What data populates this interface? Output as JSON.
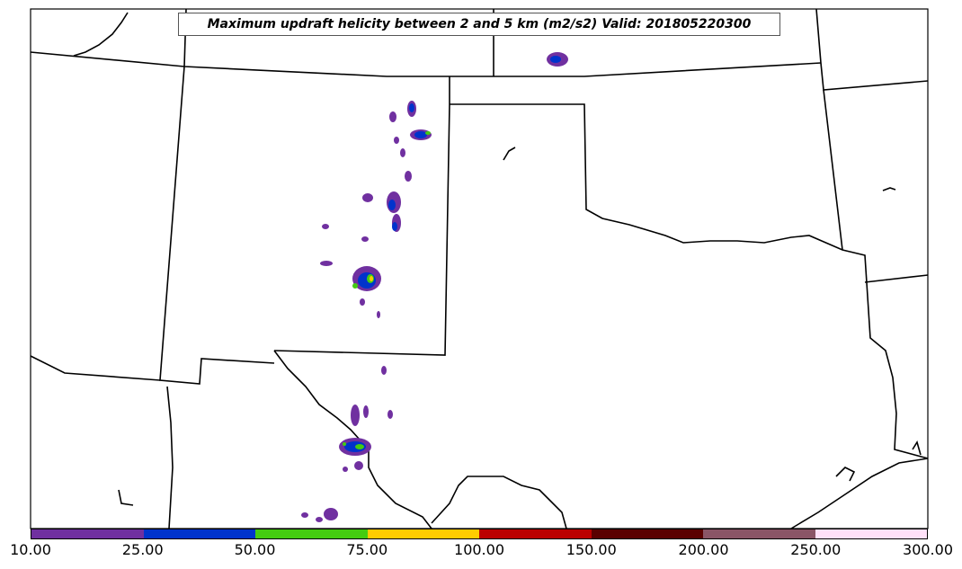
{
  "map": {
    "title": "Maximum updraft helicity between 2 and 5 km (m2/s2) Valid: 201805220300",
    "region": "southern-plains",
    "boundary_color": "#000000"
  },
  "colorbar": {
    "labels": [
      "10.00",
      "25.00",
      "50.00",
      "75.00",
      "100.00",
      "150.00",
      "200.00",
      "250.00",
      "300.00"
    ],
    "colors": [
      "#7030a0",
      "#0033cc",
      "#44cc11",
      "#ffcc00",
      "#bb0000",
      "#5a0000",
      "#8a5566",
      "#ffe0f8"
    ]
  }
}
